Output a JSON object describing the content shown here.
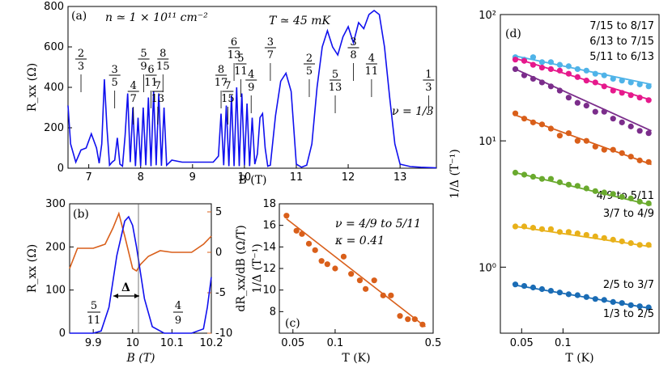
{
  "chart_data": [
    {
      "panel": "(a)",
      "type": "line",
      "xlabel": "B (T)",
      "ylabel": "R_xx (Ω)",
      "xlim": [
        6.6,
        13.7
      ],
      "ylim": [
        0,
        800
      ],
      "xticks": [
        "7",
        "8",
        "9",
        "10",
        "11",
        "12",
        "13"
      ],
      "yticks": [
        "0",
        "200",
        "400",
        "600",
        "800"
      ],
      "color": "#1010ee",
      "annotations": {
        "density": "n ≃ 1 × 10¹¹ cm⁻²",
        "temperature": "T ≃ 45 mK",
        "nu_label": "ν = 1/3"
      },
      "fractions": [
        {
          "num": "2",
          "den": "3",
          "B": 6.85
        },
        {
          "num": "3",
          "den": "5",
          "B": 7.5
        },
        {
          "num": "4",
          "den": "7",
          "B": 7.86
        },
        {
          "num": "5",
          "den": "9",
          "B": 8.06
        },
        {
          "num": "6",
          "den": "11",
          "B": 8.2
        },
        {
          "num": "7",
          "den": "13",
          "B": 8.33
        },
        {
          "num": "8",
          "den": "15",
          "B": 8.43
        },
        {
          "num": "8",
          "den": "17",
          "B": 9.55
        },
        {
          "num": "7",
          "den": "15",
          "B": 9.68
        },
        {
          "num": "6",
          "den": "13",
          "B": 9.8
        },
        {
          "num": "5",
          "den": "11",
          "B": 9.93
        },
        {
          "num": "4",
          "den": "9",
          "B": 10.13
        },
        {
          "num": "3",
          "den": "7",
          "B": 10.5
        },
        {
          "num": "2",
          "den": "5",
          "B": 11.25
        },
        {
          "num": "5",
          "den": "13",
          "B": 11.75
        },
        {
          "num": "3",
          "den": "8",
          "B": 12.1
        },
        {
          "num": "4",
          "den": "11",
          "B": 12.45
        },
        {
          "num": "1",
          "den": "3",
          "B": 13.55
        }
      ],
      "x": [
        6.6,
        6.65,
        6.75,
        6.85,
        6.95,
        7.05,
        7.15,
        7.2,
        7.25,
        7.3,
        7.35,
        7.4,
        7.45,
        7.5,
        7.55,
        7.6,
        7.65,
        7.7,
        7.75,
        7.8,
        7.85,
        7.9,
        7.95,
        8.0,
        8.05,
        8.1,
        8.15,
        8.2,
        8.25,
        8.3,
        8.35,
        8.4,
        8.45,
        8.5,
        8.6,
        8.8,
        9.0,
        9.2,
        9.4,
        9.5,
        9.55,
        9.6,
        9.65,
        9.7,
        9.75,
        9.8,
        9.85,
        9.9,
        9.95,
        10.0,
        10.05,
        10.1,
        10.15,
        10.2,
        10.25,
        10.3,
        10.35,
        10.4,
        10.45,
        10.5,
        10.6,
        10.7,
        10.8,
        10.9,
        11.0,
        11.1,
        11.2,
        11.3,
        11.4,
        11.5,
        11.6,
        11.7,
        11.8,
        11.9,
        12.0,
        12.1,
        12.2,
        12.3,
        12.4,
        12.5,
        12.6,
        12.7,
        12.8,
        12.9,
        13.0,
        13.2,
        13.4,
        13.6,
        13.7
      ],
      "y": [
        310,
        120,
        30,
        90,
        100,
        170,
        100,
        25,
        120,
        440,
        200,
        15,
        30,
        40,
        150,
        20,
        10,
        160,
        370,
        30,
        300,
        10,
        250,
        10,
        300,
        15,
        350,
        10,
        380,
        15,
        370,
        12,
        300,
        15,
        40,
        30,
        30,
        30,
        30,
        60,
        270,
        15,
        310,
        10,
        360,
        10,
        400,
        10,
        370,
        15,
        320,
        10,
        250,
        20,
        70,
        250,
        270,
        100,
        10,
        15,
        260,
        430,
        470,
        380,
        20,
        5,
        15,
        120,
        400,
        600,
        680,
        600,
        560,
        650,
        700,
        620,
        720,
        690,
        760,
        780,
        760,
        600,
        350,
        120,
        20,
        8,
        5,
        3,
        2
      ]
    },
    {
      "panel": "(b)",
      "type": "line",
      "xlabel": "B (T)",
      "ylabel": "R_xx (Ω)",
      "ylabel_right": "dR_xx/dB (Ω/T)",
      "xlim": [
        9.84,
        10.2
      ],
      "ylim": [
        0,
        300
      ],
      "ylim_right": [
        -10,
        6
      ],
      "xticks": [
        "9.9",
        "10",
        "10.1",
        "10.2"
      ],
      "yticks": [
        "0",
        "100",
        "200",
        "300"
      ],
      "yticks_right": [
        "-10",
        "-5",
        "0",
        "5"
      ],
      "gap_label": "Δ",
      "frac_left": {
        "num": "5",
        "den": "11"
      },
      "frac_right": {
        "num": "4",
        "den": "9"
      },
      "rxx": {
        "x": [
          9.84,
          9.9,
          9.92,
          9.94,
          9.96,
          9.98,
          9.99,
          10.0,
          10.01,
          10.03,
          10.05,
          10.08,
          10.15,
          10.18,
          10.19,
          10.2
        ],
        "y": [
          0,
          0,
          5,
          60,
          180,
          260,
          270,
          250,
          200,
          80,
          15,
          0,
          0,
          10,
          60,
          130
        ]
      },
      "deriv": {
        "x": [
          9.84,
          9.86,
          9.9,
          9.93,
          9.95,
          9.965,
          9.98,
          10.0,
          10.01,
          10.02,
          10.04,
          10.07,
          10.1,
          10.15,
          10.18,
          10.2
        ],
        "y": [
          -2,
          0.5,
          0.5,
          1,
          3,
          4.8,
          2,
          -2,
          -2.3,
          -1.5,
          -0.5,
          0.2,
          0,
          0,
          1,
          2
        ]
      },
      "color_rxx": "#1010ee",
      "color_deriv": "#d95f1a"
    },
    {
      "panel": "(c)",
      "type": "scatter",
      "xlabel": "T (K)",
      "ylabel": "1/Δ (T⁻¹)",
      "xscale": "log",
      "xlim": [
        0.04,
        0.5
      ],
      "ylim": [
        6,
        18
      ],
      "xticks": [
        "0.05",
        "0.1",
        "0.5"
      ],
      "yticks": [
        "8",
        "10",
        "12",
        "14",
        "16",
        "18"
      ],
      "color": "#d95f1a",
      "annotation_nu": "ν = 4/9 to 5/11",
      "annotation_kappa": "κ = 0.41",
      "points_T": [
        0.045,
        0.053,
        0.058,
        0.065,
        0.072,
        0.08,
        0.088,
        0.1,
        0.115,
        0.13,
        0.15,
        0.165,
        0.19,
        0.22,
        0.25,
        0.29,
        0.33,
        0.37,
        0.42
      ],
      "points_y": [
        16.9,
        15.5,
        15.2,
        14.3,
        13.7,
        12.7,
        12.4,
        12.0,
        13.1,
        11.5,
        10.9,
        10.1,
        10.9,
        9.5,
        9.5,
        7.6,
        7.3,
        7.3,
        6.8
      ],
      "fit": {
        "T0": 0.045,
        "y0": 16.6,
        "T1": 0.44,
        "y1": 6.6
      }
    },
    {
      "panel": "(d)",
      "type": "scatter",
      "xlabel": "T (K)",
      "ylabel": "1/Δ (T⁻¹)",
      "xscale": "log",
      "yscale": "log",
      "xlim": [
        0.035,
        0.5
      ],
      "ylim": [
        0.3,
        100
      ],
      "xticks": [
        "0.05",
        "0.1"
      ],
      "yticks": [
        "10⁰",
        "10¹",
        "10²"
      ],
      "series": [
        {
          "name": "7/15 to 8/17",
          "color": "#4fb3e8",
          "y_start": 47,
          "y_end": 28,
          "pts": [
            46,
            44,
            46,
            42,
            42,
            40,
            39,
            37,
            36,
            34,
            33,
            31,
            30,
            29,
            28,
            27
          ]
        },
        {
          "name": "6/13 to 7/15",
          "color": "#e6198c",
          "y_start": 45,
          "y_end": 21,
          "pts": [
            44,
            43,
            40,
            38,
            37,
            36,
            34,
            32,
            30,
            29,
            27,
            25,
            24,
            23,
            22,
            21
          ]
        },
        {
          "name": "5/11 to 6/13",
          "color": "#7b2d8b",
          "y_start": 37,
          "y_end": 12,
          "pts": [
            37,
            33,
            31,
            29,
            27,
            25,
            22,
            20,
            19,
            17,
            17,
            15,
            14,
            13,
            12,
            11.5
          ]
        },
        {
          "name": "4/9 to 5/11",
          "color": "#d95f1a",
          "y_start": 16,
          "y_end": 6.5,
          "pts": [
            16.5,
            15,
            14,
            13.5,
            12.5,
            11,
            11.5,
            10,
            10,
            9,
            8.5,
            8.5,
            8,
            7.5,
            7,
            6.8
          ]
        },
        {
          "name": "3/7 to 4/9",
          "color": "#6aaa2e",
          "y_start": 5.6,
          "y_end": 3.1,
          "pts": [
            5.6,
            5.4,
            5.2,
            5.0,
            5.0,
            4.7,
            4.5,
            4.4,
            4.2,
            4.0,
            3.9,
            3.8,
            3.6,
            3.5,
            3.3,
            3.2
          ]
        },
        {
          "name": "2/5 to 3/7",
          "color": "#e8b11a",
          "y_start": 2.1,
          "y_end": 1.45,
          "pts": [
            2.1,
            2.1,
            2.05,
            2.0,
            2.0,
            1.9,
            1.9,
            1.85,
            1.8,
            1.75,
            1.7,
            1.65,
            1.6,
            1.55,
            1.5,
            1.5
          ]
        },
        {
          "name": "1/3 to 2/5",
          "color": "#1a6cb5",
          "y_start": 0.72,
          "y_end": 0.47,
          "pts": [
            0.73,
            0.71,
            0.69,
            0.67,
            0.65,
            0.63,
            0.61,
            0.6,
            0.58,
            0.56,
            0.55,
            0.53,
            0.52,
            0.5,
            0.49,
            0.48
          ]
        }
      ]
    }
  ]
}
